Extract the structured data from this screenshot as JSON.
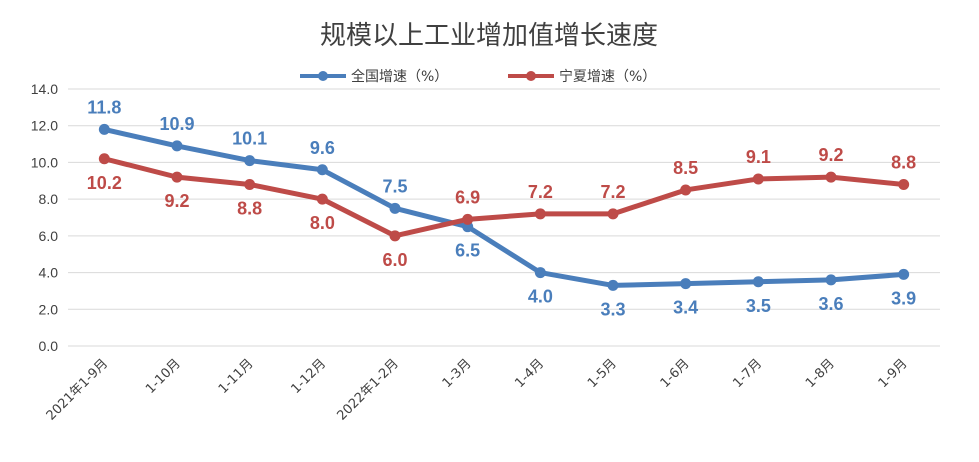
{
  "chart_data": {
    "type": "line",
    "title": "规模以上工业增加值增长速度",
    "categories": [
      "2021年1-9月",
      "1-10月",
      "1-11月",
      "1-12月",
      "2022年1-2月",
      "1-3月",
      "1-4月",
      "1-5月",
      "1-6月",
      "1-7月",
      "1-8月",
      "1-9月"
    ],
    "series": [
      {
        "name": "全国增速（%）",
        "color": "#4a7ebb",
        "values": [
          11.8,
          10.9,
          10.1,
          9.6,
          7.5,
          6.5,
          4.0,
          3.3,
          3.4,
          3.5,
          3.6,
          3.9
        ],
        "labels": [
          "11.8",
          "10.9",
          "10.1",
          "9.6",
          "7.5",
          "6.5",
          "4.0",
          "3.3",
          "3.4",
          "3.5",
          "3.6",
          "3.9"
        ]
      },
      {
        "name": "宁夏增速（%）",
        "color": "#be4b48",
        "values": [
          10.2,
          9.2,
          8.8,
          8.0,
          6.0,
          6.9,
          7.2,
          7.2,
          8.5,
          9.1,
          9.2,
          8.8
        ],
        "labels": [
          "10.2",
          "9.2",
          "8.8",
          "8.0",
          "6.0",
          "6.9",
          "7.2",
          "7.2",
          "8.5",
          "9.1",
          "9.2",
          "8.8"
        ]
      }
    ],
    "yticks": [
      "0.0",
      "2.0",
      "4.0",
      "6.0",
      "8.0",
      "10.0",
      "12.0",
      "14.0"
    ],
    "ylim": [
      0,
      14
    ],
    "grid": true,
    "legend": "top-center"
  }
}
